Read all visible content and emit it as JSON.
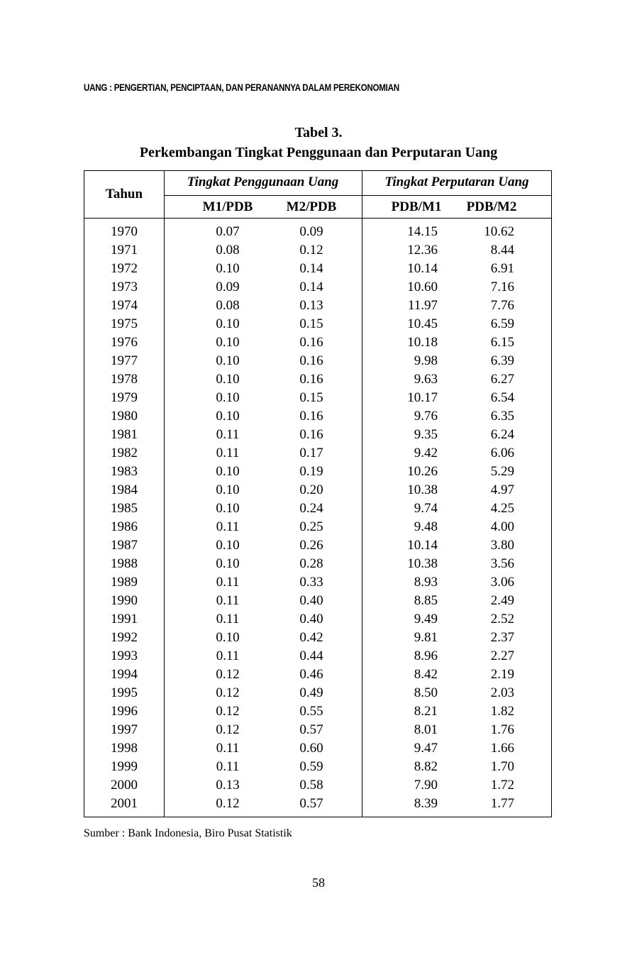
{
  "running_head": "UANG : PENGERTIAN, PENCIPTAAN, DAN PERANANNYA DALAM PEREKONOMIAN",
  "table": {
    "number": "Tabel 3.",
    "caption": "Perkembangan Tingkat Penggunaan dan Perputaran Uang",
    "headers": {
      "year": "Tahun",
      "group1": "Tingkat Penggunaan Uang",
      "group2": "Tingkat Perputaran Uang",
      "m1pdb": "M1/PDB",
      "m2pdb": "M2/PDB",
      "pdbm1": "PDB/M1",
      "pdbm2": "PDB/M2"
    },
    "rows": [
      [
        "1970",
        "0.07",
        "0.09",
        "14.15",
        "10.62"
      ],
      [
        "1971",
        "0.08",
        "0.12",
        "12.36",
        "8.44"
      ],
      [
        "1972",
        "0.10",
        "0.14",
        "10.14",
        "6.91"
      ],
      [
        "1973",
        "0.09",
        "0.14",
        "10.60",
        "7.16"
      ],
      [
        "1974",
        "0.08",
        "0.13",
        "11.97",
        "7.76"
      ],
      [
        "1975",
        "0.10",
        "0.15",
        "10.45",
        "6.59"
      ],
      [
        "1976",
        "0.10",
        "0.16",
        "10.18",
        "6.15"
      ],
      [
        "1977",
        "0.10",
        "0.16",
        "9.98",
        "6.39"
      ],
      [
        "1978",
        "0.10",
        "0.16",
        "9.63",
        "6.27"
      ],
      [
        "1979",
        "0.10",
        "0.15",
        "10.17",
        "6.54"
      ],
      [
        "1980",
        "0.10",
        "0.16",
        "9.76",
        "6.35"
      ],
      [
        "1981",
        "0.11",
        "0.16",
        "9.35",
        "6.24"
      ],
      [
        "1982",
        "0.11",
        "0.17",
        "9.42",
        "6.06"
      ],
      [
        "1983",
        "0.10",
        "0.19",
        "10.26",
        "5.29"
      ],
      [
        "1984",
        "0.10",
        "0.20",
        "10.38",
        "4.97"
      ],
      [
        "1985",
        "0.10",
        "0.24",
        "9.74",
        "4.25"
      ],
      [
        "1986",
        "0.11",
        "0.25",
        "9.48",
        "4.00"
      ],
      [
        "1987",
        "0.10",
        "0.26",
        "10.14",
        "3.80"
      ],
      [
        "1988",
        "0.10",
        "0.28",
        "10.38",
        "3.56"
      ],
      [
        "1989",
        "0.11",
        "0.33",
        "8.93",
        "3.06"
      ],
      [
        "1990",
        "0.11",
        "0.40",
        "8.85",
        "2.49"
      ],
      [
        "1991",
        "0.11",
        "0.40",
        "9.49",
        "2.52"
      ],
      [
        "1992",
        "0.10",
        "0.42",
        "9.81",
        "2.37"
      ],
      [
        "1993",
        "0.11",
        "0.44",
        "8.96",
        "2.27"
      ],
      [
        "1994",
        "0.12",
        "0.46",
        "8.42",
        "2.19"
      ],
      [
        "1995",
        "0.12",
        "0.49",
        "8.50",
        "2.03"
      ],
      [
        "1996",
        "0.12",
        "0.55",
        "8.21",
        "1.82"
      ],
      [
        "1997",
        "0.12",
        "0.57",
        "8.01",
        "1.76"
      ],
      [
        "1998",
        "0.11",
        "0.60",
        "9.47",
        "1.66"
      ],
      [
        "1999",
        "0.11",
        "0.59",
        "8.82",
        "1.70"
      ],
      [
        "2000",
        "0.13",
        "0.58",
        "7.90",
        "1.72"
      ],
      [
        "2001",
        "0.12",
        "0.57",
        "8.39",
        "1.77"
      ]
    ]
  },
  "source": "Sumber : Bank Indonesia, Biro Pusat Statistik",
  "page_number": "58"
}
